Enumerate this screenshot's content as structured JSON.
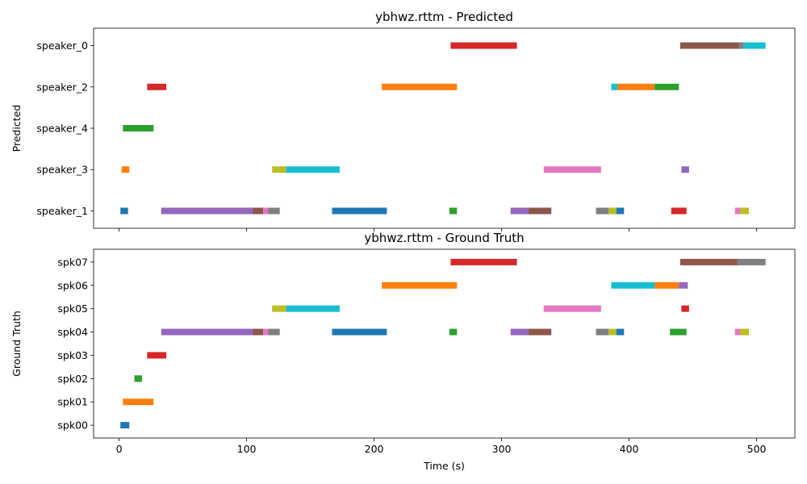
{
  "colors": {
    "blue": "#1f77b4",
    "orange": "#ff7f0e",
    "green": "#2ca02c",
    "red": "#d62728",
    "purple": "#9467bd",
    "brown": "#8c564b",
    "pink": "#e377c2",
    "gray": "#7f7f7f",
    "olive": "#bcbd22",
    "cyan": "#17becf"
  },
  "chart_data": [
    {
      "type": "timeline",
      "title": "ybhwz.rttm - Predicted",
      "ylabel": "Predicted",
      "xlabel": "",
      "xlim": [
        -20,
        530
      ],
      "xticks": [
        0,
        100,
        200,
        300,
        400,
        500
      ],
      "show_xticklabels": false,
      "rows": [
        "speaker_0",
        "speaker_2",
        "speaker_4",
        "speaker_3",
        "speaker_1"
      ],
      "segments": [
        {
          "row": "speaker_0",
          "start": 260,
          "end": 312,
          "color": "red"
        },
        {
          "row": "speaker_0",
          "start": 440,
          "end": 486,
          "color": "brown"
        },
        {
          "row": "speaker_0",
          "start": 486,
          "end": 490,
          "color": "gray"
        },
        {
          "row": "speaker_0",
          "start": 490,
          "end": 507,
          "color": "cyan"
        },
        {
          "row": "speaker_2",
          "start": 22,
          "end": 37,
          "color": "red"
        },
        {
          "row": "speaker_2",
          "start": 206,
          "end": 265,
          "color": "orange"
        },
        {
          "row": "speaker_2",
          "start": 386,
          "end": 391,
          "color": "cyan"
        },
        {
          "row": "speaker_2",
          "start": 391,
          "end": 420,
          "color": "orange"
        },
        {
          "row": "speaker_2",
          "start": 420,
          "end": 439,
          "color": "green"
        },
        {
          "row": "speaker_4",
          "start": 3,
          "end": 27,
          "color": "green"
        },
        {
          "row": "speaker_3",
          "start": 2,
          "end": 8,
          "color": "orange"
        },
        {
          "row": "speaker_3",
          "start": 120,
          "end": 131,
          "color": "olive"
        },
        {
          "row": "speaker_3",
          "start": 131,
          "end": 173,
          "color": "cyan"
        },
        {
          "row": "speaker_3",
          "start": 333,
          "end": 378,
          "color": "pink"
        },
        {
          "row": "speaker_3",
          "start": 441,
          "end": 447,
          "color": "purple"
        },
        {
          "row": "speaker_1",
          "start": 1,
          "end": 7,
          "color": "blue"
        },
        {
          "row": "speaker_1",
          "start": 33,
          "end": 105,
          "color": "purple"
        },
        {
          "row": "speaker_1",
          "start": 105,
          "end": 113,
          "color": "brown"
        },
        {
          "row": "speaker_1",
          "start": 113,
          "end": 117,
          "color": "pink"
        },
        {
          "row": "speaker_1",
          "start": 117,
          "end": 126,
          "color": "gray"
        },
        {
          "row": "speaker_1",
          "start": 167,
          "end": 210,
          "color": "blue"
        },
        {
          "row": "speaker_1",
          "start": 259,
          "end": 265,
          "color": "green"
        },
        {
          "row": "speaker_1",
          "start": 307,
          "end": 321,
          "color": "purple"
        },
        {
          "row": "speaker_1",
          "start": 321,
          "end": 339,
          "color": "brown"
        },
        {
          "row": "speaker_1",
          "start": 374,
          "end": 384,
          "color": "gray"
        },
        {
          "row": "speaker_1",
          "start": 384,
          "end": 390,
          "color": "olive"
        },
        {
          "row": "speaker_1",
          "start": 390,
          "end": 396,
          "color": "blue"
        },
        {
          "row": "speaker_1",
          "start": 433,
          "end": 445,
          "color": "red"
        },
        {
          "row": "speaker_1",
          "start": 483,
          "end": 487,
          "color": "pink"
        },
        {
          "row": "speaker_1",
          "start": 487,
          "end": 494,
          "color": "olive"
        }
      ]
    },
    {
      "type": "timeline",
      "title": "ybhwz.rttm - Ground Truth",
      "ylabel": "Ground Truth",
      "xlabel": "Time (s)",
      "xlim": [
        -20,
        530
      ],
      "xticks": [
        0,
        100,
        200,
        300,
        400,
        500
      ],
      "show_xticklabels": true,
      "rows": [
        "spk07",
        "spk06",
        "spk05",
        "spk04",
        "spk03",
        "spk02",
        "spk01",
        "spk00"
      ],
      "segments": [
        {
          "row": "spk07",
          "start": 260,
          "end": 312,
          "color": "red"
        },
        {
          "row": "spk07",
          "start": 440,
          "end": 485,
          "color": "brown"
        },
        {
          "row": "spk07",
          "start": 485,
          "end": 507,
          "color": "gray"
        },
        {
          "row": "spk06",
          "start": 206,
          "end": 265,
          "color": "orange"
        },
        {
          "row": "spk06",
          "start": 386,
          "end": 420,
          "color": "cyan"
        },
        {
          "row": "spk06",
          "start": 420,
          "end": 439,
          "color": "orange"
        },
        {
          "row": "spk06",
          "start": 439,
          "end": 446,
          "color": "purple"
        },
        {
          "row": "spk05",
          "start": 120,
          "end": 131,
          "color": "olive"
        },
        {
          "row": "spk05",
          "start": 131,
          "end": 173,
          "color": "cyan"
        },
        {
          "row": "spk05",
          "start": 333,
          "end": 378,
          "color": "pink"
        },
        {
          "row": "spk05",
          "start": 441,
          "end": 447,
          "color": "red"
        },
        {
          "row": "spk04",
          "start": 33,
          "end": 105,
          "color": "purple"
        },
        {
          "row": "spk04",
          "start": 105,
          "end": 113,
          "color": "brown"
        },
        {
          "row": "spk04",
          "start": 113,
          "end": 117,
          "color": "pink"
        },
        {
          "row": "spk04",
          "start": 117,
          "end": 126,
          "color": "gray"
        },
        {
          "row": "spk04",
          "start": 167,
          "end": 210,
          "color": "blue"
        },
        {
          "row": "spk04",
          "start": 259,
          "end": 265,
          "color": "green"
        },
        {
          "row": "spk04",
          "start": 307,
          "end": 321,
          "color": "purple"
        },
        {
          "row": "spk04",
          "start": 321,
          "end": 339,
          "color": "brown"
        },
        {
          "row": "spk04",
          "start": 374,
          "end": 384,
          "color": "gray"
        },
        {
          "row": "spk04",
          "start": 384,
          "end": 390,
          "color": "olive"
        },
        {
          "row": "spk04",
          "start": 390,
          "end": 396,
          "color": "blue"
        },
        {
          "row": "spk04",
          "start": 432,
          "end": 445,
          "color": "green"
        },
        {
          "row": "spk04",
          "start": 483,
          "end": 487,
          "color": "pink"
        },
        {
          "row": "spk04",
          "start": 487,
          "end": 494,
          "color": "olive"
        },
        {
          "row": "spk03",
          "start": 22,
          "end": 37,
          "color": "red"
        },
        {
          "row": "spk02",
          "start": 12,
          "end": 18,
          "color": "green"
        },
        {
          "row": "spk01",
          "start": 3,
          "end": 27,
          "color": "orange"
        },
        {
          "row": "spk00",
          "start": 1,
          "end": 8,
          "color": "blue"
        }
      ]
    }
  ]
}
